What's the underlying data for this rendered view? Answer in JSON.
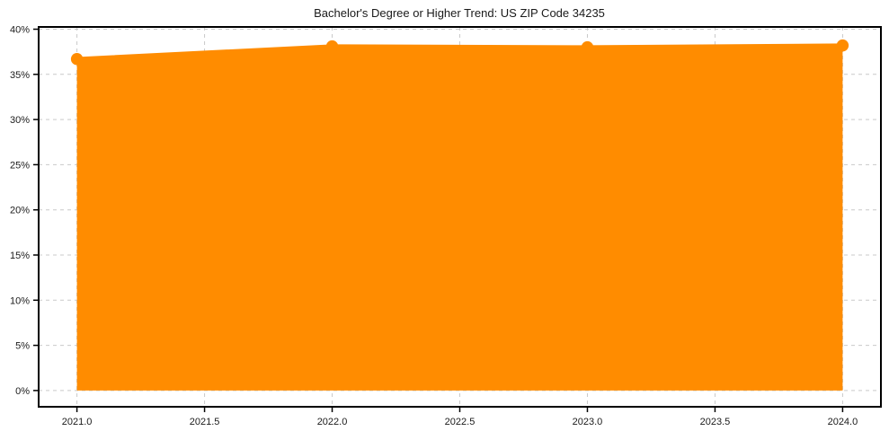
{
  "chart_data": {
    "type": "line",
    "title": "Bachelor's Degree or Higher Trend: US ZIP Code 34235",
    "x": [
      2021,
      2022,
      2023,
      2024
    ],
    "values": [
      36.7,
      38.1,
      38.0,
      38.2
    ],
    "xlabel": "",
    "ylabel": "",
    "xlim": [
      2020.85,
      2024.15
    ],
    "ylim": [
      -1.8,
      40.25
    ],
    "xticks": {
      "values": [
        2021.0,
        2021.5,
        2022.0,
        2022.5,
        2023.0,
        2023.5,
        2024.0
      ],
      "labels": [
        "2021.0",
        "2021.5",
        "2022.0",
        "2022.5",
        "2023.0",
        "2023.5",
        "2024.0"
      ]
    },
    "yticks": {
      "values": [
        0,
        5,
        10,
        15,
        20,
        25,
        30,
        35,
        40
      ],
      "labels": [
        "0%",
        "5%",
        "10%",
        "15%",
        "20%",
        "25%",
        "30%",
        "35%",
        "40%"
      ]
    },
    "grid": true,
    "grid_style": "dashed",
    "legend": false,
    "area_fill": true,
    "fill_baseline": 0,
    "colors": {
      "line": "#FF8C00",
      "marker": "#FF8C00",
      "fill": "#FF8C00",
      "fill_opacity": 0.12,
      "grid": "#c9c9c9",
      "axis": "#000000",
      "text": "#1a1a1a",
      "background": "#ffffff"
    }
  }
}
